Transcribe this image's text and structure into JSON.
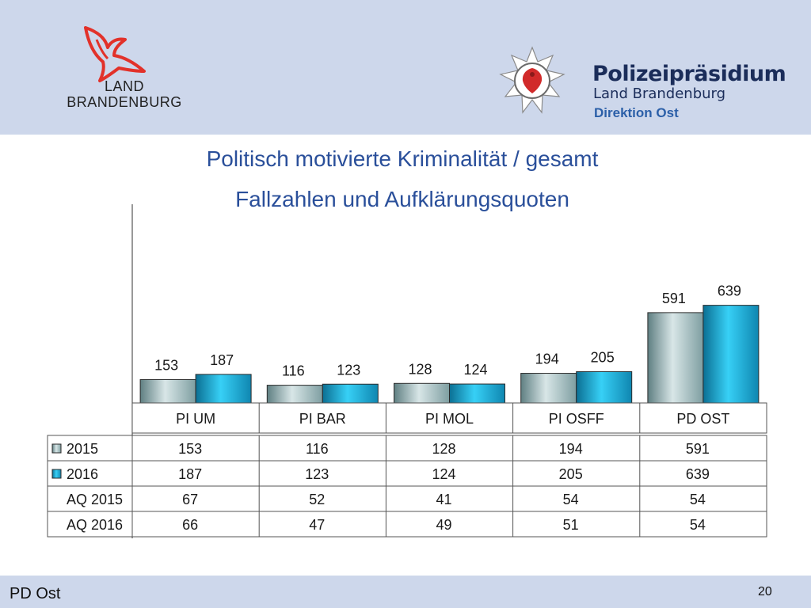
{
  "header": {
    "state_logo_line1": "LAND",
    "state_logo_line2": "BRANDENBURG",
    "police_title": "Polizeipräsidium",
    "police_subtitle": "Land Brandenburg",
    "police_direction": "Direktion Ost"
  },
  "slide": {
    "title_line1": "Politisch motivierte Kriminalität / gesamt",
    "title_line2": "Fallzahlen und Aufklärungsquoten"
  },
  "footer": {
    "label": "PD Ost",
    "page_number": "20"
  },
  "colors": {
    "header_bg": "#cdd7eb",
    "title": "#2a4f9a",
    "series_2015": "#8fb0b3",
    "series_2016": "#1bb4e0"
  },
  "chart_data": {
    "type": "bar",
    "categories": [
      "PI UM",
      "PI BAR",
      "PI MOL",
      "PI OSFF",
      "PD OST"
    ],
    "series": [
      {
        "name": "2015",
        "values": [
          153,
          116,
          128,
          194,
          591
        ],
        "color": "#8fb0b3"
      },
      {
        "name": "2016",
        "values": [
          187,
          123,
          124,
          205,
          639
        ],
        "color": "#1bb4e0"
      }
    ],
    "table_rows": [
      {
        "label": "2015",
        "values": [
          "153",
          "116",
          "128",
          "194",
          "591"
        ],
        "legend_key": true,
        "color": "#8fb0b3"
      },
      {
        "label": "2016",
        "values": [
          "187",
          "123",
          "124",
          "205",
          "639"
        ],
        "legend_key": true,
        "color": "#1bb4e0"
      },
      {
        "label": "AQ 2015",
        "values": [
          "67",
          "52",
          "41",
          "54",
          "54"
        ],
        "legend_key": false
      },
      {
        "label": "AQ 2016",
        "values": [
          "66",
          "47",
          "49",
          "51",
          "54"
        ],
        "legend_key": false
      }
    ],
    "ylim": [
      0,
      1300
    ],
    "grid": false,
    "legend": "data-table"
  }
}
